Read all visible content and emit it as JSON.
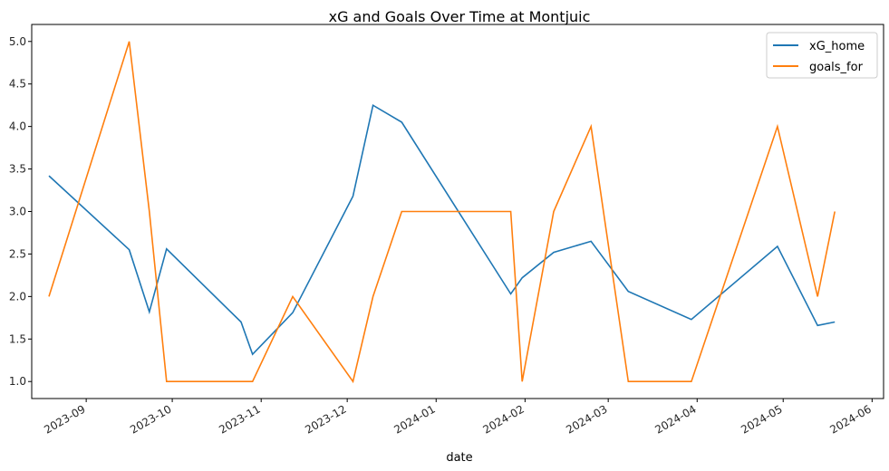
{
  "chart_data": {
    "type": "line",
    "title": "xG and Goals Over Time at Montjuic",
    "xlabel": "date",
    "ylabel": "",
    "ylim": [
      0.8,
      5.2
    ],
    "xlim": [
      "2023-08-13",
      "2024-06-05"
    ],
    "grid": false,
    "legend_position": "top-right",
    "x_ticks": [
      {
        "date": "2023-09-01",
        "label": "2023-09"
      },
      {
        "date": "2023-10-01",
        "label": "2023-10"
      },
      {
        "date": "2023-11-01",
        "label": "2023-11"
      },
      {
        "date": "2023-12-01",
        "label": "2023-12"
      },
      {
        "date": "2024-01-01",
        "label": "2024-01"
      },
      {
        "date": "2024-02-01",
        "label": "2024-02"
      },
      {
        "date": "2024-03-01",
        "label": "2024-03"
      },
      {
        "date": "2024-04-01",
        "label": "2024-04"
      },
      {
        "date": "2024-05-01",
        "label": "2024-05"
      },
      {
        "date": "2024-06-01",
        "label": "2024-06"
      }
    ],
    "y_ticks": [
      {
        "value": 1.0,
        "label": "1.0"
      },
      {
        "value": 1.5,
        "label": "1.5"
      },
      {
        "value": 2.0,
        "label": "2.0"
      },
      {
        "value": 2.5,
        "label": "2.5"
      },
      {
        "value": 3.0,
        "label": "3.0"
      },
      {
        "value": 3.5,
        "label": "3.5"
      },
      {
        "value": 4.0,
        "label": "4.0"
      },
      {
        "value": 4.5,
        "label": "4.5"
      },
      {
        "value": 5.0,
        "label": "5.0"
      }
    ],
    "x": [
      "2023-08-19",
      "2023-09-16",
      "2023-09-23",
      "2023-09-29",
      "2023-10-25",
      "2023-10-29",
      "2023-11-12",
      "2023-12-03",
      "2023-12-10",
      "2023-12-20",
      "2024-01-27",
      "2024-01-31",
      "2024-02-11",
      "2024-02-24",
      "2024-03-08",
      "2024-03-30",
      "2024-04-29",
      "2024-05-13",
      "2024-05-19"
    ],
    "series": [
      {
        "name": "xG_home",
        "color": "#1f77b4",
        "values": [
          3.42,
          2.55,
          1.82,
          2.56,
          1.7,
          1.32,
          1.81,
          3.18,
          4.25,
          4.05,
          2.03,
          2.22,
          2.52,
          2.65,
          2.06,
          1.73,
          2.59,
          1.66,
          1.7
        ]
      },
      {
        "name": "goals_for",
        "color": "#ff7f0e",
        "values": [
          2,
          5,
          3,
          1,
          1,
          1,
          2,
          1,
          2,
          3,
          3,
          1,
          3,
          4,
          1,
          1,
          4,
          2,
          3
        ]
      }
    ]
  }
}
